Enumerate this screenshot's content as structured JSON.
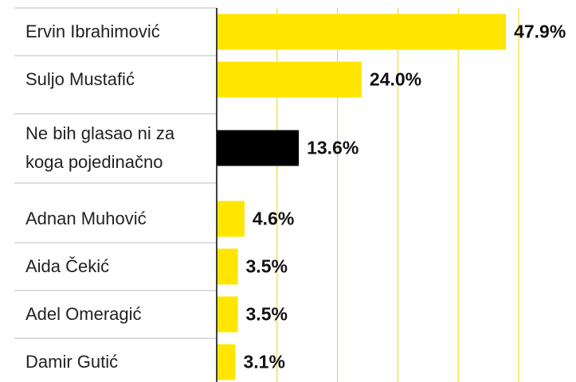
{
  "chart_data": {
    "type": "bar",
    "orientation": "horizontal",
    "categories": [
      "Ervin Ibrahimović",
      "Suljo Mustafić",
      "Ne bih glasao ni za koga pojedinačno",
      "Adnan Muhović",
      "Aida Čekić",
      "Adel Omeragić",
      "Damir Gutić"
    ],
    "values": [
      47.9,
      24.0,
      13.6,
      4.6,
      3.5,
      3.5,
      3.1
    ],
    "value_labels": [
      "47.9%",
      "24.0%",
      "13.6%",
      "4.6%",
      "3.5%",
      "3.5%",
      "3.1%"
    ],
    "colors": [
      "#ffe600",
      "#ffe600",
      "#000000",
      "#ffe600",
      "#ffe600",
      "#ffe600",
      "#ffe600"
    ],
    "xlim": [
      0,
      60
    ],
    "xticks": [
      0,
      10,
      20,
      30,
      40,
      50
    ],
    "grid": true
  }
}
